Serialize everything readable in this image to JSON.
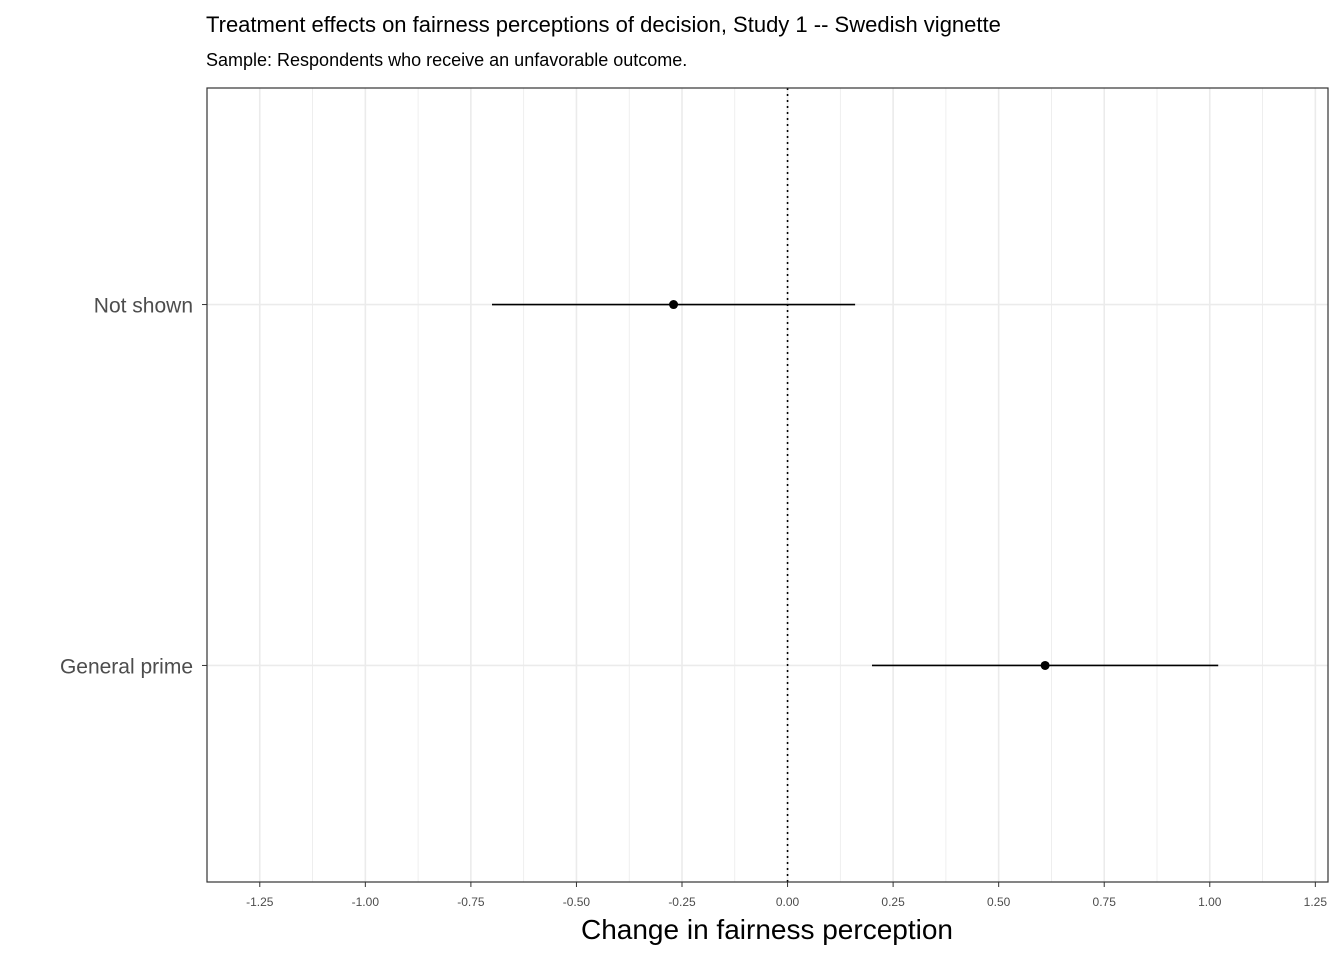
{
  "chart_data": {
    "type": "scatter",
    "title": "Treatment effects on fairness perceptions of decision, Study 1 -- Swedish vignette",
    "subtitle": "Sample: Respondents who receive an unfavorable outcome.",
    "xlabel": "Change in fairness perception",
    "ylabel": "",
    "xlim": [
      -1.375,
      1.28
    ],
    "x_ticks": [
      -1.25,
      -1.0,
      -0.75,
      -0.5,
      -0.25,
      0.0,
      0.25,
      0.5,
      0.75,
      1.0,
      1.25
    ],
    "x_tick_labels": [
      "-1.25",
      "-1.00",
      "-0.75",
      "-0.50",
      "-0.25",
      "0.00",
      "0.25",
      "0.50",
      "0.75",
      "1.00",
      "1.25"
    ],
    "reference_line": 0.0,
    "grid": true,
    "categories": [
      "Not shown",
      "General prime"
    ],
    "estimates": [
      {
        "category": "Not shown",
        "estimate": -0.27,
        "ci_low": -0.7,
        "ci_high": 0.16
      },
      {
        "category": "General prime",
        "estimate": 0.61,
        "ci_low": 0.2,
        "ci_high": 1.02
      }
    ],
    "colors": {
      "point": "#000000",
      "grid": "#ebebeb",
      "panel_border": "#333333"
    }
  }
}
